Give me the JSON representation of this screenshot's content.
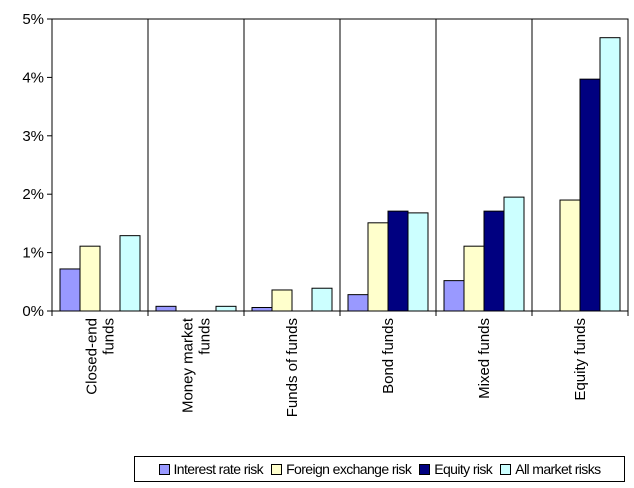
{
  "chart_data": {
    "type": "bar",
    "categories": [
      [
        "Closed-end",
        "funds"
      ],
      [
        "Money market",
        "funds"
      ],
      [
        "Funds of funds"
      ],
      [
        "Bond funds"
      ],
      [
        "Mixed funds"
      ],
      [
        "Equity funds"
      ]
    ],
    "series": [
      {
        "name": "Interest rate risk",
        "color": "#9999ff",
        "values": [
          0.72,
          0.08,
          0.06,
          0.28,
          0.52,
          null
        ]
      },
      {
        "name": "Foreign exchange risk",
        "color": "#ffffcc",
        "values": [
          1.11,
          null,
          0.36,
          1.51,
          1.11,
          1.9
        ]
      },
      {
        "name": "Equity risk",
        "color": "#000080",
        "values": [
          null,
          null,
          null,
          1.71,
          1.71,
          3.97
        ]
      },
      {
        "name": "All market risks",
        "color": "#ccffff",
        "values": [
          1.29,
          0.08,
          0.39,
          1.68,
          1.95,
          4.68
        ]
      }
    ],
    "ylim": [
      0,
      5
    ],
    "yticks": [
      "0%",
      "1%",
      "2%",
      "3%",
      "4%",
      "5%"
    ],
    "grid": "vertical-category-lines",
    "legend_position": "bottom"
  }
}
